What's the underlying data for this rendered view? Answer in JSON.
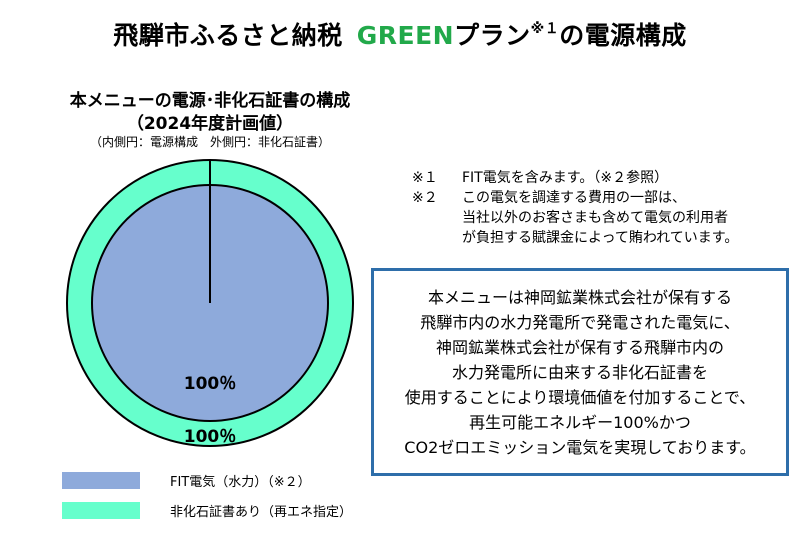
{
  "title": {
    "prefix": "飛騨市ふるさと納税",
    "green": "GREEN",
    "after": "プラン",
    "note_mark": "※１",
    "suffix": "の電源構成"
  },
  "chart_data": {
    "type": "pie",
    "title_line1": "本メニューの電源･非化石証書の構成",
    "title_line2": "（2024年度計画値）",
    "subtitle": "（内側円：電源構成　外側円：非化石証書）",
    "inner": {
      "name": "電源構成",
      "labels": [
        "FIT電気（水力）（※２）"
      ],
      "values": [
        100
      ],
      "value_label": "100％"
    },
    "outer": {
      "name": "非化石証書",
      "labels": [
        "非化石証書あり（再エネ指定）"
      ],
      "values": [
        100
      ],
      "value_label": "100％"
    },
    "legend": [
      {
        "label": "FIT電気（水力）（※２）",
        "color": "#8eaadb"
      },
      {
        "label": "非化石証書あり（再エネ指定）",
        "color": "#66ffcc"
      }
    ],
    "colors": {
      "inner": "#8eaadb",
      "outer": "#66ffcc",
      "stroke": "#000000"
    }
  },
  "notes": [
    {
      "mark": "※１",
      "lines": [
        "FIT電気を含みます。（※２参照）"
      ]
    },
    {
      "mark": "※２",
      "lines": [
        "この電気を調達する費用の一部は、",
        "当社以外のお客さまも含めて電気の利用者",
        "が負担する賦課金によって賄われています。"
      ]
    }
  ],
  "info_box": {
    "lines": [
      "本メニューは神岡鉱業株式会社が保有する",
      "飛騨市内の水力発電所で発電された電気に、",
      "神岡鉱業株式会社が保有する飛騨市内の",
      "水力発電所に由来する非化石証書を",
      "使用することにより環境価値を付加することで、",
      "再生可能エネルギー100%かつ",
      "CO2ゼロエミッション電気を実現しております。"
    ],
    "border_color": "#2e6eaa"
  }
}
